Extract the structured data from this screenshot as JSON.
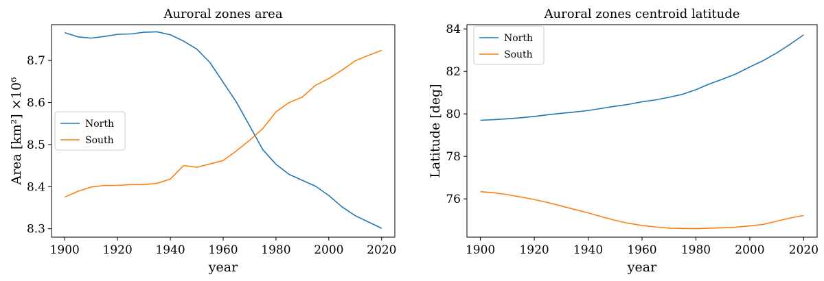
{
  "figure": {
    "charts_count": 2
  },
  "chart_data": [
    {
      "type": "line",
      "title": "Auroral zones area",
      "xlabel": "year",
      "ylabel": "Area [km²] ×10⁶",
      "xlim": [
        1895,
        2025
      ],
      "ylim": [
        8.28,
        8.785
      ],
      "xticks": [
        1900,
        1920,
        1940,
        1960,
        1980,
        2000,
        2020
      ],
      "yticks": [
        8.3,
        8.4,
        8.5,
        8.6,
        8.7
      ],
      "ytick_labels": [
        "8.3",
        "8.4",
        "8.5",
        "8.6",
        "8.7"
      ],
      "grid": false,
      "legend_position": "center-left",
      "x": [
        1900,
        1905,
        1910,
        1915,
        1920,
        1925,
        1930,
        1935,
        1940,
        1945,
        1950,
        1955,
        1960,
        1965,
        1970,
        1975,
        1980,
        1985,
        1990,
        1995,
        2000,
        2005,
        2010,
        2015,
        2020
      ],
      "series": [
        {
          "name": "North",
          "color": "#1f77b4",
          "values": [
            8.766,
            8.756,
            8.753,
            8.757,
            8.762,
            8.763,
            8.767,
            8.768,
            8.761,
            8.746,
            8.727,
            8.695,
            8.648,
            8.601,
            8.545,
            8.488,
            8.453,
            8.429,
            8.415,
            8.401,
            8.379,
            8.352,
            8.331,
            8.316,
            8.301
          ]
        },
        {
          "name": "South",
          "color": "#ff7f0e",
          "values": [
            8.375,
            8.389,
            8.399,
            8.403,
            8.403,
            8.405,
            8.405,
            8.408,
            8.418,
            8.45,
            8.446,
            8.454,
            8.462,
            8.485,
            8.51,
            8.538,
            8.578,
            8.6,
            8.613,
            8.641,
            8.657,
            8.677,
            8.699,
            8.712,
            8.724
          ]
        }
      ]
    },
    {
      "type": "line",
      "title": "Auroral zones centroid latitude",
      "xlabel": "year",
      "ylabel": "Latitude [deg]",
      "xlim": [
        1895,
        2025
      ],
      "ylim": [
        74.2,
        84.2
      ],
      "xticks": [
        1900,
        1920,
        1940,
        1960,
        1980,
        2000,
        2020
      ],
      "yticks": [
        76,
        78,
        80,
        82,
        84
      ],
      "ytick_labels": [
        "76",
        "78",
        "80",
        "82",
        "84"
      ],
      "grid": false,
      "legend_position": "top-left",
      "x": [
        1900,
        1905,
        1910,
        1915,
        1920,
        1925,
        1930,
        1935,
        1940,
        1945,
        1950,
        1955,
        1960,
        1965,
        1970,
        1975,
        1980,
        1985,
        1990,
        1995,
        2000,
        2005,
        2010,
        2015,
        2020
      ],
      "series": [
        {
          "name": "North",
          "color": "#1f77b4",
          "values": [
            79.7,
            79.73,
            79.77,
            79.82,
            79.88,
            79.96,
            80.03,
            80.09,
            80.16,
            80.26,
            80.36,
            80.45,
            80.57,
            80.66,
            80.78,
            80.92,
            81.14,
            81.41,
            81.64,
            81.89,
            82.21,
            82.51,
            82.87,
            83.28,
            83.72
          ]
        },
        {
          "name": "South",
          "color": "#ff7f0e",
          "values": [
            76.34,
            76.29,
            76.2,
            76.09,
            75.97,
            75.83,
            75.67,
            75.5,
            75.34,
            75.16,
            74.99,
            74.85,
            74.75,
            74.68,
            74.62,
            74.61,
            74.6,
            74.62,
            74.64,
            74.67,
            74.73,
            74.8,
            74.95,
            75.1,
            75.22
          ]
        }
      ]
    }
  ]
}
